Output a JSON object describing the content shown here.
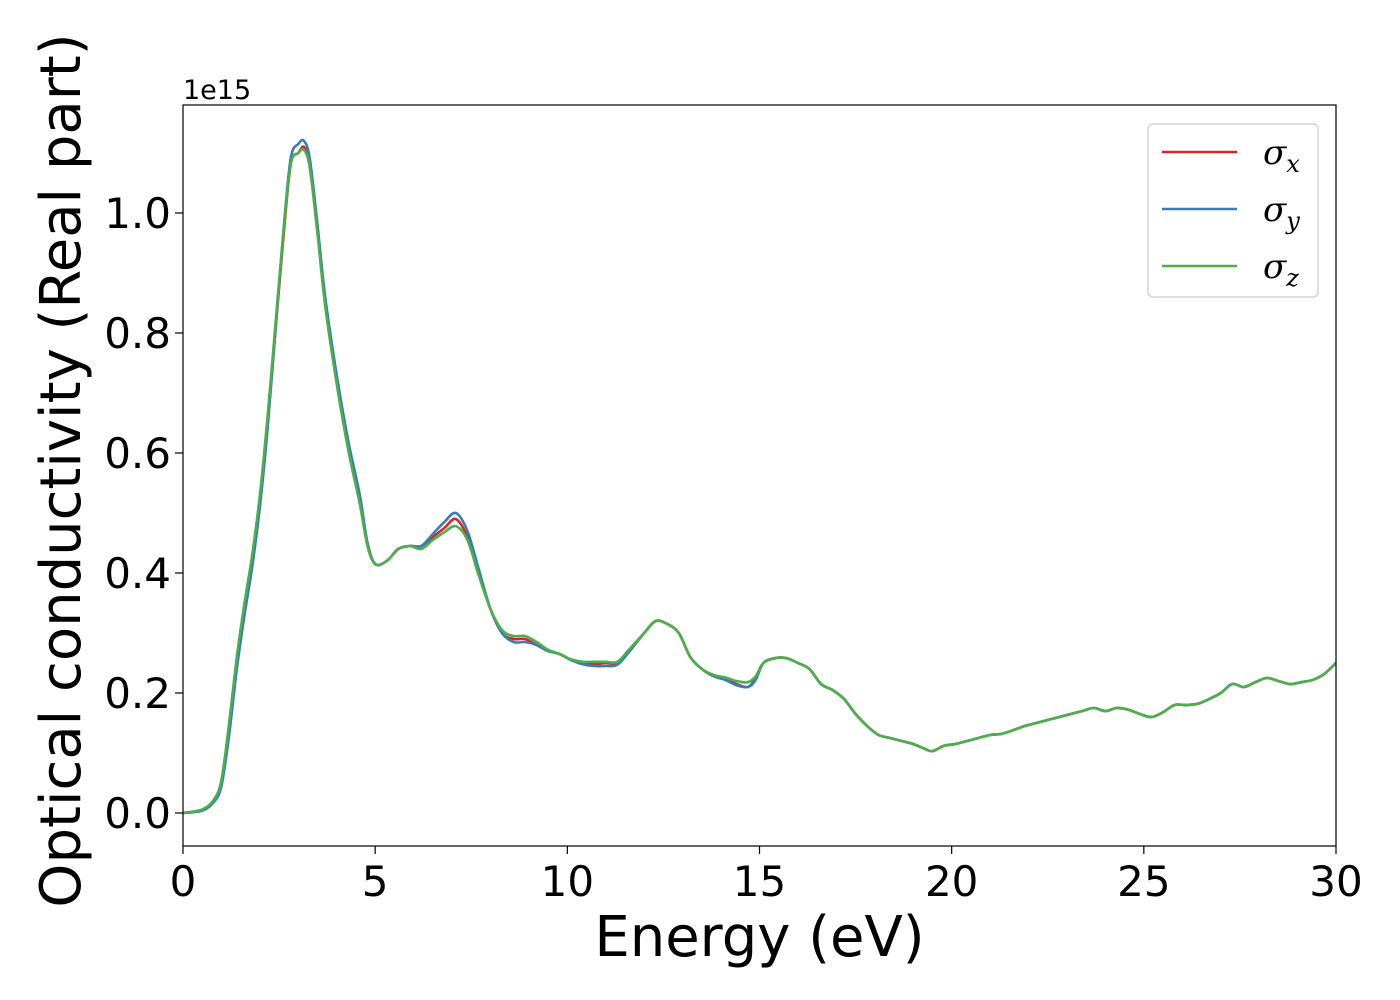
{
  "chart_data": {
    "type": "line",
    "xlabel": "Energy (eV)",
    "ylabel": "Optical conductivity (Real part)",
    "offset_text": "1e15",
    "xlim": [
      0,
      30
    ],
    "ylim": [
      -0.055,
      1.18
    ],
    "xticks": [
      0,
      5,
      10,
      15,
      20,
      25,
      30
    ],
    "xtick_labels": [
      "0",
      "5",
      "10",
      "15",
      "20",
      "25",
      "30"
    ],
    "yticks": [
      0.0,
      0.2,
      0.4,
      0.6,
      0.8,
      1.0
    ],
    "ytick_labels": [
      "0.0",
      "0.2",
      "0.4",
      "0.6",
      "0.8",
      "1.0"
    ],
    "y_scale_factor": 1000000000000000.0,
    "grid": false,
    "legend_position": "top-right",
    "series": [
      {
        "name": "x",
        "color": "#d62728",
        "x": [
          0,
          0.5,
          0.8,
          1.0,
          1.2,
          1.4,
          1.6,
          1.8,
          2.0,
          2.2,
          2.4,
          2.6,
          2.8,
          3.0,
          3.15,
          3.3,
          3.5,
          3.7,
          4.0,
          4.3,
          4.6,
          4.8,
          5.0,
          5.3,
          5.6,
          5.9,
          6.2,
          6.5,
          6.8,
          7.1,
          7.4,
          7.7,
          8.0,
          8.3,
          8.6,
          8.9,
          9.2,
          9.5,
          9.8,
          10.1,
          10.4,
          10.7,
          11.0,
          11.3,
          11.6,
          12.0,
          12.3,
          12.6,
          12.9,
          13.2,
          13.5,
          13.8,
          14.1,
          14.4,
          14.7,
          14.9,
          15.1,
          15.4,
          15.7,
          16.0,
          16.3,
          16.6,
          16.9,
          17.2,
          17.5,
          17.8,
          18.1,
          18.4,
          18.7,
          19.0,
          19.3,
          19.5,
          19.8,
          20.1,
          20.4,
          20.7,
          21.0,
          21.3,
          21.6,
          21.9,
          22.2,
          22.5,
          22.8,
          23.1,
          23.4,
          23.7,
          24.0,
          24.3,
          24.6,
          24.9,
          25.2,
          25.5,
          25.8,
          26.1,
          26.4,
          26.7,
          27.0,
          27.3,
          27.6,
          27.9,
          28.2,
          28.5,
          28.8,
          29.1,
          29.4,
          29.7,
          30.0
        ],
        "values": [
          0.0,
          0.005,
          0.02,
          0.05,
          0.14,
          0.25,
          0.34,
          0.42,
          0.52,
          0.65,
          0.8,
          0.95,
          1.08,
          1.1,
          1.11,
          1.08,
          0.97,
          0.85,
          0.72,
          0.61,
          0.52,
          0.45,
          0.415,
          0.42,
          0.44,
          0.445,
          0.445,
          0.46,
          0.475,
          0.49,
          0.46,
          0.4,
          0.34,
          0.3,
          0.29,
          0.29,
          0.28,
          0.27,
          0.265,
          0.255,
          0.25,
          0.248,
          0.25,
          0.25,
          0.27,
          0.3,
          0.32,
          0.315,
          0.3,
          0.26,
          0.24,
          0.23,
          0.225,
          0.215,
          0.21,
          0.225,
          0.25,
          0.258,
          0.258,
          0.25,
          0.24,
          0.215,
          0.205,
          0.19,
          0.165,
          0.145,
          0.13,
          0.125,
          0.12,
          0.115,
          0.107,
          0.103,
          0.112,
          0.115,
          0.12,
          0.125,
          0.13,
          0.132,
          0.138,
          0.145,
          0.15,
          0.155,
          0.16,
          0.165,
          0.17,
          0.175,
          0.17,
          0.175,
          0.172,
          0.165,
          0.16,
          0.168,
          0.18,
          0.18,
          0.182,
          0.19,
          0.2,
          0.215,
          0.21,
          0.218,
          0.225,
          0.22,
          0.215,
          0.218,
          0.222,
          0.232,
          0.25
        ]
      },
      {
        "name": "y",
        "color": "#377eb8",
        "x": [
          0,
          0.5,
          0.8,
          1.0,
          1.2,
          1.4,
          1.6,
          1.8,
          2.0,
          2.2,
          2.4,
          2.6,
          2.8,
          3.0,
          3.15,
          3.3,
          3.5,
          3.7,
          4.0,
          4.3,
          4.6,
          4.8,
          5.0,
          5.3,
          5.6,
          5.9,
          6.2,
          6.5,
          6.8,
          7.1,
          7.4,
          7.7,
          8.0,
          8.3,
          8.6,
          8.9,
          9.2,
          9.5,
          9.8,
          10.1,
          10.4,
          10.7,
          11.0,
          11.3,
          11.6,
          12.0,
          12.3,
          12.6,
          12.9,
          13.2,
          13.5,
          13.8,
          14.1,
          14.4,
          14.7,
          14.9,
          15.1,
          15.4,
          15.7,
          16.0,
          16.3,
          16.6,
          16.9,
          17.2,
          17.5,
          17.8,
          18.1,
          18.4,
          18.7,
          19.0,
          19.3,
          19.5,
          19.8,
          20.1,
          20.4,
          20.7,
          21.0,
          21.3,
          21.6,
          21.9,
          22.2,
          22.5,
          22.8,
          23.1,
          23.4,
          23.7,
          24.0,
          24.3,
          24.6,
          24.9,
          25.2,
          25.5,
          25.8,
          26.1,
          26.4,
          26.7,
          27.0,
          27.3,
          27.6,
          27.9,
          28.2,
          28.5,
          28.8,
          29.1,
          29.4,
          29.7,
          30.0
        ],
        "values": [
          0.0,
          0.004,
          0.018,
          0.045,
          0.13,
          0.24,
          0.33,
          0.41,
          0.51,
          0.64,
          0.8,
          0.96,
          1.09,
          1.115,
          1.12,
          1.09,
          0.98,
          0.86,
          0.73,
          0.62,
          0.53,
          0.45,
          0.415,
          0.42,
          0.44,
          0.445,
          0.445,
          0.465,
          0.485,
          0.5,
          0.47,
          0.405,
          0.34,
          0.3,
          0.285,
          0.285,
          0.28,
          0.27,
          0.265,
          0.255,
          0.248,
          0.245,
          0.245,
          0.247,
          0.268,
          0.3,
          0.32,
          0.315,
          0.3,
          0.26,
          0.24,
          0.228,
          0.222,
          0.213,
          0.21,
          0.222,
          0.25,
          0.258,
          0.258,
          0.25,
          0.24,
          0.215,
          0.205,
          0.19,
          0.165,
          0.145,
          0.13,
          0.125,
          0.12,
          0.115,
          0.107,
          0.103,
          0.112,
          0.115,
          0.12,
          0.125,
          0.13,
          0.132,
          0.138,
          0.145,
          0.15,
          0.155,
          0.16,
          0.165,
          0.17,
          0.175,
          0.17,
          0.175,
          0.172,
          0.165,
          0.16,
          0.168,
          0.18,
          0.18,
          0.182,
          0.19,
          0.2,
          0.215,
          0.21,
          0.218,
          0.225,
          0.22,
          0.215,
          0.218,
          0.222,
          0.232,
          0.25
        ]
      },
      {
        "name": "z",
        "color": "#4daf4a",
        "x": [
          0,
          0.5,
          0.8,
          1.0,
          1.2,
          1.4,
          1.6,
          1.8,
          2.0,
          2.2,
          2.4,
          2.6,
          2.8,
          3.0,
          3.15,
          3.3,
          3.5,
          3.7,
          4.0,
          4.3,
          4.6,
          4.8,
          5.0,
          5.3,
          5.6,
          5.9,
          6.2,
          6.5,
          6.8,
          7.1,
          7.4,
          7.7,
          8.0,
          8.3,
          8.6,
          8.9,
          9.2,
          9.5,
          9.8,
          10.1,
          10.4,
          10.7,
          11.0,
          11.3,
          11.6,
          12.0,
          12.3,
          12.6,
          12.9,
          13.2,
          13.5,
          13.8,
          14.1,
          14.4,
          14.7,
          14.9,
          15.1,
          15.4,
          15.7,
          16.0,
          16.3,
          16.6,
          16.9,
          17.2,
          17.5,
          17.8,
          18.1,
          18.4,
          18.7,
          19.0,
          19.3,
          19.5,
          19.8,
          20.1,
          20.4,
          20.7,
          21.0,
          21.3,
          21.6,
          21.9,
          22.2,
          22.5,
          22.8,
          23.1,
          23.4,
          23.7,
          24.0,
          24.3,
          24.6,
          24.9,
          25.2,
          25.5,
          25.8,
          26.1,
          26.4,
          26.7,
          27.0,
          27.3,
          27.6,
          27.9,
          28.2,
          28.5,
          28.8,
          29.1,
          29.4,
          29.7,
          30.0
        ],
        "values": [
          0.0,
          0.006,
          0.022,
          0.055,
          0.15,
          0.26,
          0.35,
          0.43,
          0.53,
          0.66,
          0.81,
          0.96,
          1.08,
          1.1,
          1.105,
          1.075,
          0.965,
          0.845,
          0.715,
          0.605,
          0.515,
          0.445,
          0.415,
          0.42,
          0.44,
          0.445,
          0.44,
          0.455,
          0.468,
          0.478,
          0.455,
          0.395,
          0.34,
          0.305,
          0.295,
          0.295,
          0.285,
          0.272,
          0.265,
          0.256,
          0.252,
          0.252,
          0.252,
          0.252,
          0.272,
          0.3,
          0.32,
          0.315,
          0.3,
          0.26,
          0.24,
          0.23,
          0.226,
          0.22,
          0.218,
          0.228,
          0.25,
          0.258,
          0.258,
          0.25,
          0.24,
          0.215,
          0.205,
          0.19,
          0.165,
          0.145,
          0.13,
          0.125,
          0.12,
          0.115,
          0.107,
          0.103,
          0.112,
          0.115,
          0.12,
          0.125,
          0.13,
          0.132,
          0.138,
          0.145,
          0.15,
          0.155,
          0.16,
          0.165,
          0.17,
          0.175,
          0.17,
          0.175,
          0.172,
          0.165,
          0.16,
          0.168,
          0.18,
          0.18,
          0.182,
          0.19,
          0.2,
          0.215,
          0.21,
          0.218,
          0.225,
          0.22,
          0.215,
          0.218,
          0.222,
          0.232,
          0.25
        ]
      }
    ]
  }
}
